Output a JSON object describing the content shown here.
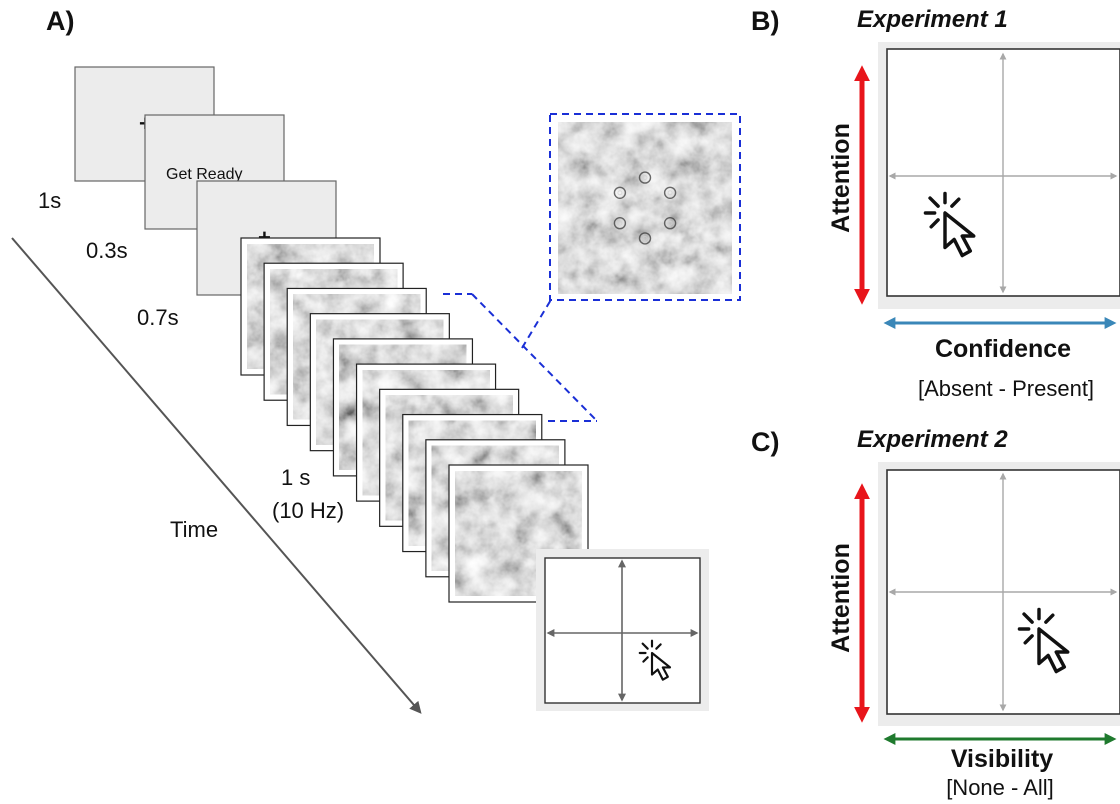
{
  "panels": {
    "a_label": "A)",
    "b_label": "B)",
    "c_label": "C)"
  },
  "trial_sequence": {
    "get_ready_text": "Get Ready",
    "fixation_symbol": "+",
    "durations": {
      "fixation": "1s",
      "get_ready": "0.3s",
      "pre_stimulus": "0.7s",
      "stimulus": "1 s",
      "stimulus_rate": "(10 Hz)"
    },
    "time_axis_label": "Time",
    "noise_frame_count": 10,
    "inset_target_rings": 6
  },
  "experiment_1": {
    "title": "Experiment 1",
    "y_axis": "Attention",
    "x_axis": "Confidence",
    "x_range": "[Absent - Present]",
    "colors": {
      "y_arrow": "#e8151b",
      "x_arrow": "#3a87b8"
    }
  },
  "experiment_2": {
    "title": "Experiment 2",
    "y_axis": "Attention",
    "x_axis": "Visibility",
    "x_range": "[None - All]",
    "colors": {
      "y_arrow": "#e8151b",
      "x_arrow": "#1f7a2e"
    }
  },
  "icons": {
    "cursor": "click-cursor-icon",
    "crosshair": "crosshair-arrows-icon"
  },
  "colors": {
    "zoom_outline": "#1a2fd6",
    "screen_gray": "#ececec",
    "grid_arrow": "#a8a8a8",
    "time_arrow": "#555555"
  }
}
